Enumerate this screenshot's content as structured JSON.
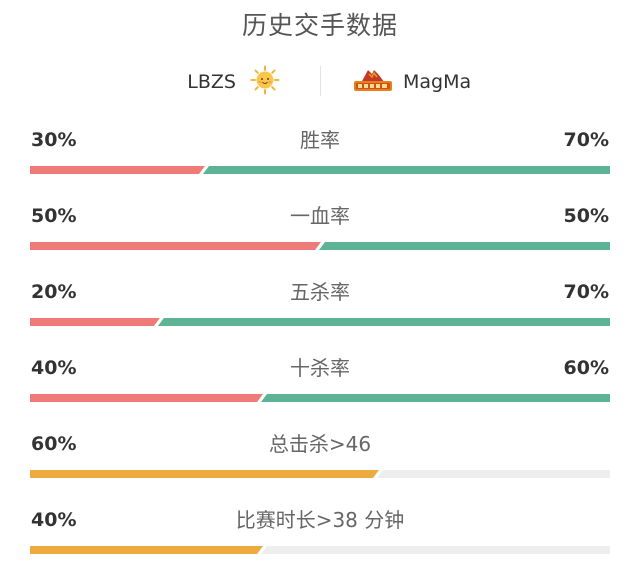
{
  "page": {
    "title": "历史交手数据"
  },
  "teams": {
    "left": {
      "name": "LBZS",
      "logo_icon": "sun-face-icon"
    },
    "right": {
      "name": "MagMa",
      "logo_icon": "magma-volcano-logo-icon"
    }
  },
  "colors": {
    "left_bar": "#ee7b78",
    "right_bar": "#5db393",
    "single_bar": "#ecab3c",
    "track": "#eeeeee"
  },
  "stats": [
    {
      "label": "胜率",
      "left_text": "30%",
      "right_text": "70%",
      "left": 0.3,
      "right": 0.7,
      "type": "versus"
    },
    {
      "label": "一血率",
      "left_text": "50%",
      "right_text": "50%",
      "left": 0.5,
      "right": 0.5,
      "type": "versus"
    },
    {
      "label": "五杀率",
      "left_text": "20%",
      "right_text": "70%",
      "left": 0.2,
      "right": 0.7,
      "type": "versus"
    },
    {
      "label": "十杀率",
      "left_text": "40%",
      "right_text": "60%",
      "left": 0.4,
      "right": 0.6,
      "type": "versus"
    },
    {
      "label": "总击杀>46",
      "left_text": "60%",
      "left": 0.6,
      "type": "single"
    },
    {
      "label": "比赛时长>38 分钟",
      "left_text": "40%",
      "left": 0.4,
      "type": "single"
    }
  ]
}
